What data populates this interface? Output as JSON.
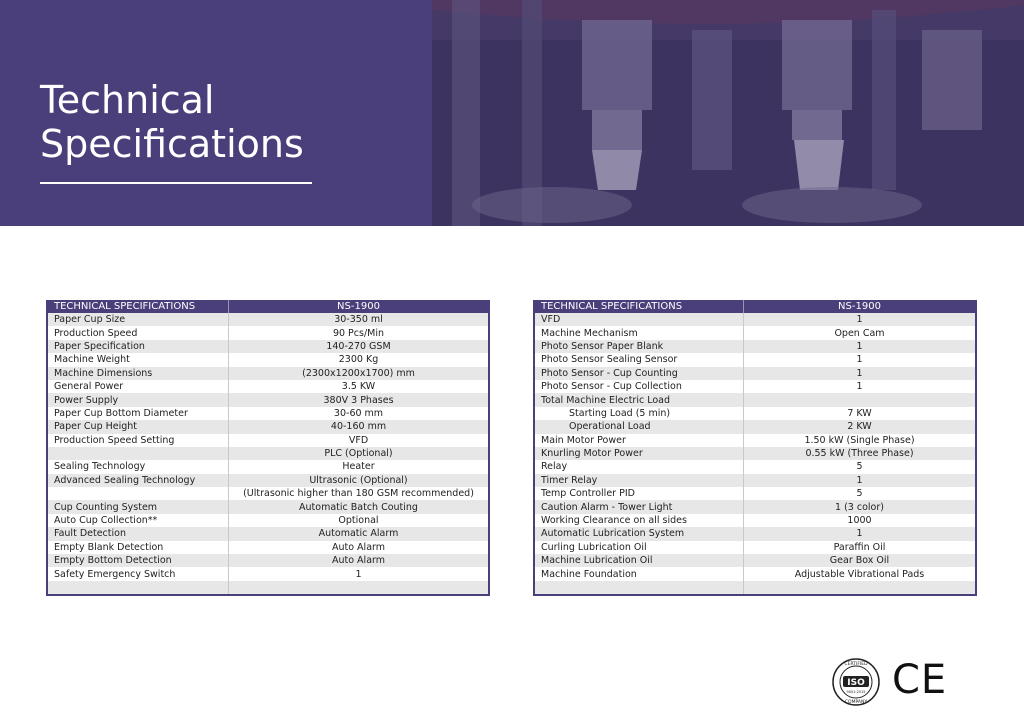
{
  "header": {
    "title_line1": "Technical",
    "title_line2": "Specifications"
  },
  "table_left": {
    "headers": [
      "TECHNICAL SPECIFICATIONS",
      "NS-1900"
    ],
    "rows": [
      {
        "label": "Paper Cup Size",
        "value": "30-350 ml"
      },
      {
        "label": "Production Speed",
        "value": "90 Pcs/Min"
      },
      {
        "label": "Paper Specification",
        "value": "140-270 GSM"
      },
      {
        "label": "Machine Weight",
        "value": "2300 Kg"
      },
      {
        "label": "Machine Dimensions",
        "value": "(2300x1200x1700) mm"
      },
      {
        "label": "General Power",
        "value": "3.5 KW"
      },
      {
        "label": "Power Supply",
        "value": "380V 3 Phases"
      },
      {
        "label": "Paper Cup Bottom Diameter",
        "value": "30-60 mm"
      },
      {
        "label": "Paper Cup Height",
        "value": "40-160 mm"
      },
      {
        "label": "Production Speed Setting",
        "value": "VFD"
      },
      {
        "label": "",
        "value": "PLC (Optional)"
      },
      {
        "label": "Sealing Technology",
        "value": "Heater"
      },
      {
        "label": "Advanced Sealing Technology",
        "value": "Ultrasonic (Optional)"
      },
      {
        "label": "",
        "value": "(Ultrasonic higher than 180 GSM recommended)"
      },
      {
        "label": "Cup Counting System",
        "value": "Automatic Batch Couting"
      },
      {
        "label": "Auto Cup Collection**",
        "value": "Optional"
      },
      {
        "label": "Fault Detection",
        "value": "Automatic Alarm"
      },
      {
        "label": "Empty Blank Detection",
        "value": "Auto Alarm"
      },
      {
        "label": "Empty Bottom Detection",
        "value": "Auto Alarm"
      },
      {
        "label": "Safety Emergency Switch",
        "value": "1"
      },
      {
        "label": "",
        "value": ""
      }
    ]
  },
  "table_right": {
    "headers": [
      "TECHNICAL SPECIFICATIONS",
      "NS-1900"
    ],
    "rows": [
      {
        "label": "VFD",
        "value": "1"
      },
      {
        "label": "Machine Mechanism",
        "value": "Open Cam"
      },
      {
        "label": "Photo Sensor Paper Blank",
        "value": "1"
      },
      {
        "label": "Photo Sensor Sealing Sensor",
        "value": "1"
      },
      {
        "label": "Photo Sensor - Cup Counting",
        "value": "1"
      },
      {
        "label": "Photo Sensor - Cup Collection",
        "value": "1"
      },
      {
        "label": "Total Machine Electric Load",
        "value": ""
      },
      {
        "label": "Starting Load (5 min)",
        "value": "7 KW"
      },
      {
        "label": "Operational Load",
        "value": "2 KW"
      },
      {
        "label": "Main Motor Power",
        "value": "1.50 kW (Single Phase)"
      },
      {
        "label": "Knurling Motor Power",
        "value": "0.55 kW (Three Phase)"
      },
      {
        "label": "Relay",
        "value": "5"
      },
      {
        "label": "Timer Relay",
        "value": "1"
      },
      {
        "label": "Temp Controller PID",
        "value": "5"
      },
      {
        "label": "Caution Alarm - Tower Light",
        "value": "1 (3 color)"
      },
      {
        "label": "Working Clearance on all sides",
        "value": "1000"
      },
      {
        "label": "Automatic Lubrication System",
        "value": "1"
      },
      {
        "label": "Curling Lubrication Oil",
        "value": "Paraffin Oil"
      },
      {
        "label": "Machine Lubrication Oil",
        "value": "Gear Box Oil"
      },
      {
        "label": "Machine Foundation",
        "value": "Adjustable Vibrational Pads"
      },
      {
        "label": "",
        "value": ""
      }
    ]
  },
  "logos": {
    "iso_top": "CERTIFIED",
    "iso_mid": "ISO",
    "iso_sub": "9001:2015",
    "iso_bottom": "COMPANY",
    "ce": "CE"
  },
  "colors": {
    "brand_purple": "#4a3f7a",
    "row_alt": "#e7e7e7"
  }
}
